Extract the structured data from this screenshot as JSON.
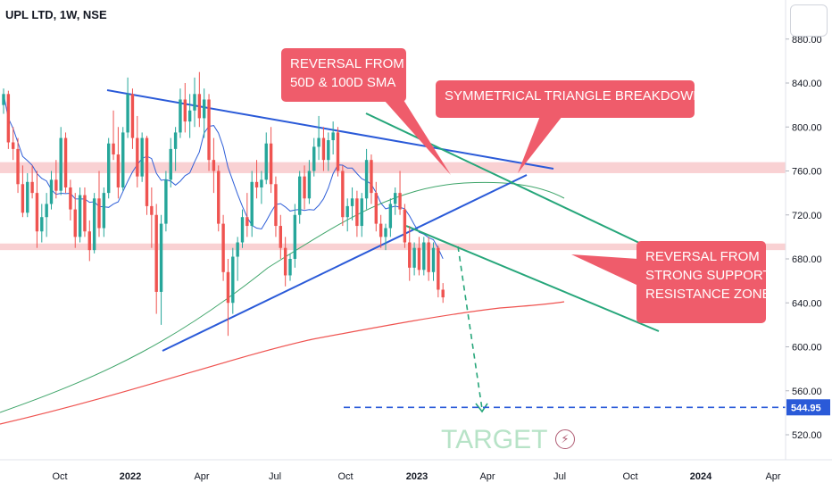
{
  "header": {
    "symbol": "UPL LTD, 1W, NSE"
  },
  "colors": {
    "up": "#26a69a",
    "down": "#ef5350",
    "trend_blue": "#2a5ad8",
    "channel_green": "#26a67a",
    "sma50": "#2f5fd8",
    "sma100": "#3fa56a",
    "sma200": "#ef5350",
    "zone": "#f7c5c8",
    "annotation": "#ef5c6b",
    "target_line": "#2a5ad8",
    "target_text": "#b7e3c7"
  },
  "annotations": {
    "reversal_sma": [
      "REVERSAL FROM",
      "50D & 100D SMA"
    ],
    "triangle": [
      "SYMMETRICAL TRIANGLE BREAKDOWN"
    ],
    "reversal_zone": [
      "REVERSAL FROM",
      "STRONG SUPPORT-",
      "RESISTANCE ZONE"
    ],
    "target": "TARGET"
  },
  "icons": {
    "alert": "lightning-icon"
  },
  "chart_data": {
    "type": "candlestick",
    "title": "UPL LTD, 1W, NSE",
    "ylim": [
      505,
      905
    ],
    "y_ticks": [
      "880.00",
      "840.00",
      "800.00",
      "760.00",
      "720.00",
      "680.00",
      "640.00",
      "600.00",
      "560.00",
      "520.00"
    ],
    "x_ticks": [
      "Oct",
      "2022",
      "Apr",
      "Jul",
      "Oct",
      "2023",
      "Apr",
      "Jul",
      "Oct",
      "2024",
      "Apr"
    ],
    "x_ticks_bold": [
      "2022",
      "2023",
      "2024"
    ],
    "last_price_label": "544.95",
    "target_price": 544.95,
    "support_resistance_zones": [
      [
        758,
        768
      ],
      [
        688,
        694
      ]
    ],
    "candles": [
      [
        820,
        835,
        812,
        830
      ],
      [
        830,
        833,
        780,
        786
      ],
      [
        786,
        800,
        770,
        780
      ],
      [
        780,
        790,
        740,
        748
      ],
      [
        748,
        765,
        718,
        722
      ],
      [
        722,
        758,
        718,
        750
      ],
      [
        750,
        765,
        735,
        740
      ],
      [
        740,
        760,
        690,
        705
      ],
      [
        705,
        730,
        695,
        718
      ],
      [
        718,
        740,
        700,
        730
      ],
      [
        730,
        760,
        725,
        752
      ],
      [
        752,
        770,
        735,
        742
      ],
      [
        742,
        800,
        738,
        790
      ],
      [
        790,
        795,
        740,
        745
      ],
      [
        745,
        752,
        715,
        725
      ],
      [
        725,
        740,
        690,
        700
      ],
      [
        700,
        745,
        695,
        738
      ],
      [
        738,
        745,
        700,
        705
      ],
      [
        705,
        715,
        678,
        688
      ],
      [
        688,
        740,
        685,
        735
      ],
      [
        735,
        760,
        700,
        708
      ],
      [
        708,
        745,
        700,
        740
      ],
      [
        740,
        790,
        735,
        785
      ],
      [
        785,
        815,
        770,
        775
      ],
      [
        775,
        800,
        735,
        745
      ],
      [
        745,
        800,
        742,
        795
      ],
      [
        795,
        845,
        790,
        830
      ],
      [
        830,
        835,
        780,
        790
      ],
      [
        790,
        810,
        745,
        755
      ],
      [
        755,
        795,
        750,
        790
      ],
      [
        790,
        792,
        720,
        728
      ],
      [
        728,
        745,
        690,
        720
      ],
      [
        720,
        730,
        630,
        650
      ],
      [
        650,
        720,
        620,
        712
      ],
      [
        712,
        760,
        705,
        752
      ],
      [
        752,
        790,
        745,
        780
      ],
      [
        780,
        800,
        760,
        795
      ],
      [
        795,
        835,
        790,
        825
      ],
      [
        825,
        840,
        795,
        805
      ],
      [
        805,
        830,
        790,
        815
      ],
      [
        815,
        845,
        800,
        830
      ],
      [
        830,
        850,
        800,
        808
      ],
      [
        808,
        835,
        790,
        825
      ],
      [
        825,
        830,
        760,
        770
      ],
      [
        770,
        790,
        740,
        760
      ],
      [
        760,
        765,
        705,
        712
      ],
      [
        712,
        720,
        660,
        668
      ],
      [
        668,
        680,
        610,
        640
      ],
      [
        640,
        690,
        630,
        682
      ],
      [
        682,
        700,
        660,
        695
      ],
      [
        695,
        725,
        690,
        718
      ],
      [
        718,
        740,
        700,
        710
      ],
      [
        710,
        760,
        700,
        750
      ],
      [
        750,
        770,
        735,
        745
      ],
      [
        745,
        760,
        730,
        752
      ],
      [
        752,
        795,
        748,
        785
      ],
      [
        785,
        800,
        740,
        748
      ],
      [
        748,
        755,
        700,
        710
      ],
      [
        710,
        720,
        680,
        690
      ],
      [
        690,
        700,
        655,
        665
      ],
      [
        665,
        685,
        660,
        680
      ],
      [
        680,
        730,
        672,
        720
      ],
      [
        720,
        760,
        712,
        755
      ],
      [
        755,
        765,
        725,
        735
      ],
      [
        735,
        770,
        730,
        760
      ],
      [
        760,
        790,
        755,
        782
      ],
      [
        782,
        810,
        770,
        790
      ],
      [
        790,
        800,
        760,
        770
      ],
      [
        770,
        795,
        760,
        788
      ],
      [
        788,
        805,
        775,
        795
      ],
      [
        795,
        800,
        755,
        760
      ],
      [
        760,
        765,
        710,
        718
      ],
      [
        718,
        735,
        705,
        728
      ],
      [
        728,
        745,
        715,
        735
      ],
      [
        735,
        742,
        700,
        710
      ],
      [
        710,
        740,
        700,
        735
      ],
      [
        735,
        780,
        725,
        770
      ],
      [
        770,
        775,
        730,
        740
      ],
      [
        740,
        750,
        705,
        712
      ],
      [
        712,
        720,
        690,
        700
      ],
      [
        700,
        712,
        688,
        708
      ],
      [
        708,
        735,
        700,
        730
      ],
      [
        730,
        745,
        720,
        740
      ],
      [
        740,
        760,
        720,
        725
      ],
      [
        725,
        730,
        690,
        695
      ],
      [
        695,
        710,
        660,
        672
      ],
      [
        672,
        695,
        665,
        690
      ],
      [
        690,
        700,
        665,
        670
      ],
      [
        670,
        700,
        665,
        695
      ],
      [
        695,
        700,
        660,
        668
      ],
      [
        668,
        695,
        660,
        690
      ],
      [
        690,
        692,
        645,
        652
      ],
      [
        652,
        658,
        640,
        645
      ]
    ]
  }
}
